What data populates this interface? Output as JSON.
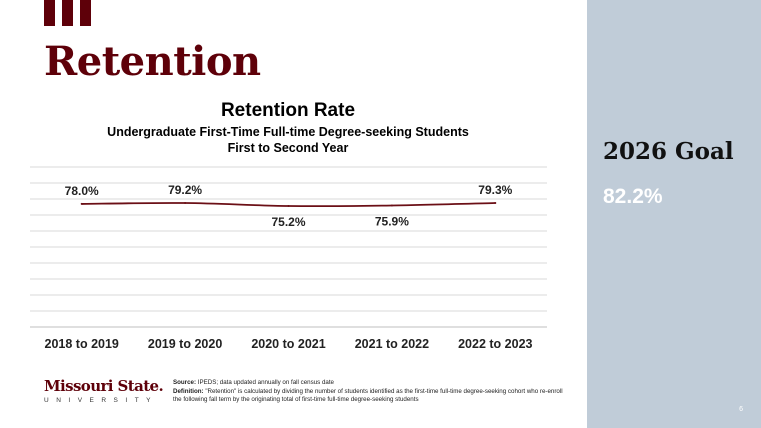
{
  "heading": "Retention",
  "goal": {
    "label": "2026 Goal",
    "value": "82.2%"
  },
  "logo": {
    "main": "Missouri State.",
    "sub": "UNIVERSITY"
  },
  "notes": {
    "source_label": "Source:",
    "source_text": "IPEDS; data updated annually on fall census date",
    "definition_label": "Definition:",
    "definition_text": "\"Retention\" is calculated by dividing the number of students identified as the first-time full-time degree-seeking cohort who re-enroll the following fall term by the originating total of first-time full-time degree-seeking students"
  },
  "page_number": "6",
  "chart_data": {
    "type": "line",
    "title": "Retention Rate",
    "subtitle": [
      "Undergraduate First-Time Full-time Degree-seeking Students",
      "First to Second Year"
    ],
    "categories": [
      "2018 to 2019",
      "2019 to 2020",
      "2020 to 2021",
      "2021 to 2022",
      "2022 to 2023"
    ],
    "series": [
      {
        "values": [
          78.0,
          79.2,
          75.2,
          75.9,
          79.3
        ]
      }
    ],
    "data_labels": [
      "78.0%",
      "79.2%",
      "75.2%",
      "75.9%",
      "79.3%"
    ],
    "grid": true,
    "line_color": "#6b0f16"
  }
}
